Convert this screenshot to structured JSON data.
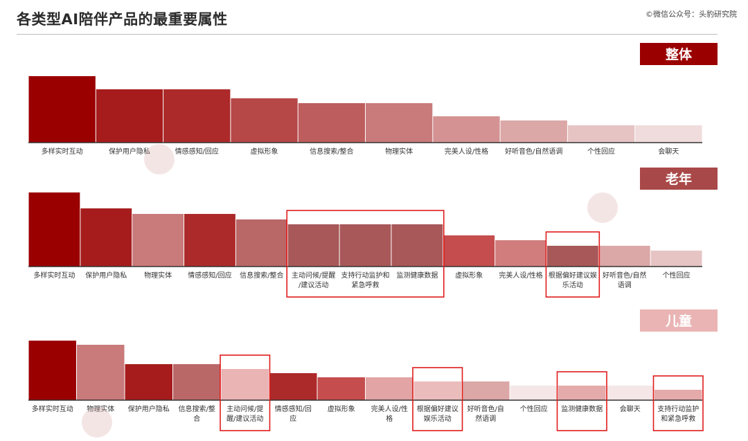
{
  "header": {
    "title": "各类型AI陪伴产品的最重要属性",
    "source": "©微信公众号：头豹研究院"
  },
  "colors": {
    "c1": "#9b0000",
    "c2": "#a61c1c",
    "c3": "#ad2a2a",
    "c4": "#b64848",
    "c5": "#be5d5d",
    "c6": "#c97a7a",
    "c7": "#d49292",
    "c8": "#dca7a7",
    "c9": "#e6c4c4",
    "c10": "#f0dcdc",
    "c11": "#a85858",
    "c12": "#ba6767",
    "c13": "#c46f6f",
    "c14": "#eab4b4",
    "c15": "#e5aaaa",
    "c16": "#ebbcbc",
    "c17": "#f5e7e7",
    "c18": "#c54d4d",
    "c19": "#d17d7d",
    "c20": "#e2a4a4",
    "c21": "#f3d2d2",
    "highlight": "#e01b1b",
    "panel_dark": "#9b0000",
    "panel_mid": "#a94848",
    "panel_light": "#eab4b4"
  },
  "chart_data": [
    {
      "type": "bar",
      "title": "整体",
      "categories": [
        "多样实时互动",
        "保护用户隐私",
        "情感感知/回应",
        "虚拟形象",
        "信息搜索/整合",
        "物理实体",
        "完美人设/性格",
        "好听音色/自然语调",
        "个性回应",
        "会聊天"
      ],
      "values": [
        96,
        77,
        77,
        64,
        57,
        57,
        38,
        32,
        25,
        25
      ],
      "colors": [
        "c1",
        "c2",
        "c3",
        "c4",
        "c5",
        "c6",
        "c7",
        "c8",
        "c9",
        "c10"
      ],
      "highlights": []
    },
    {
      "type": "bar",
      "title": "老年",
      "categories": [
        "多样实时互动",
        "保护用户隐私",
        "物理实体",
        "情感感知/回应",
        "信息搜索/整合",
        "主动问候/提醒/建议活动",
        "支持行动监护和紧急呼救",
        "监测健康数据",
        "虚拟形象",
        "完美人设/性格",
        "根据偏好建议娱乐活动",
        "好听音色/自然语调",
        "个性回应"
      ],
      "values": [
        107,
        84,
        76,
        76,
        68,
        61,
        61,
        61,
        45,
        38,
        30,
        30,
        23
      ],
      "colors": [
        "c1",
        "c2",
        "c6",
        "c3",
        "c12",
        "c11",
        "c11",
        "c11",
        "c18",
        "c19",
        "c11",
        "c8",
        "c9"
      ],
      "highlights": [
        [
          5,
          7
        ],
        [
          10,
          10
        ]
      ]
    },
    {
      "type": "bar",
      "title": "儿童",
      "categories": [
        "多样实时互动",
        "物理实体",
        "保护用户隐私",
        "信息搜索/整合",
        "主动问候/提醒/建议活动",
        "情感感知/回应",
        "虚拟形象",
        "完美人设/性格",
        "根据偏好建议娱乐活动",
        "好听音色/自然语调",
        "个性回应",
        "监测健康数据",
        "会聊天",
        "支持行动监护和紧急呼救"
      ],
      "values": [
        86,
        80,
        52,
        52,
        45,
        39,
        33,
        33,
        27,
        27,
        21,
        21,
        21,
        15
      ],
      "colors": [
        "c1",
        "c6",
        "c2",
        "c12",
        "c14",
        "c3",
        "c18",
        "c20",
        "c16",
        "c8",
        "c17",
        "c15",
        "c17",
        "c15"
      ],
      "highlights": [
        [
          4,
          4
        ],
        [
          8,
          8
        ],
        [
          11,
          11
        ],
        [
          13,
          13
        ]
      ]
    }
  ]
}
